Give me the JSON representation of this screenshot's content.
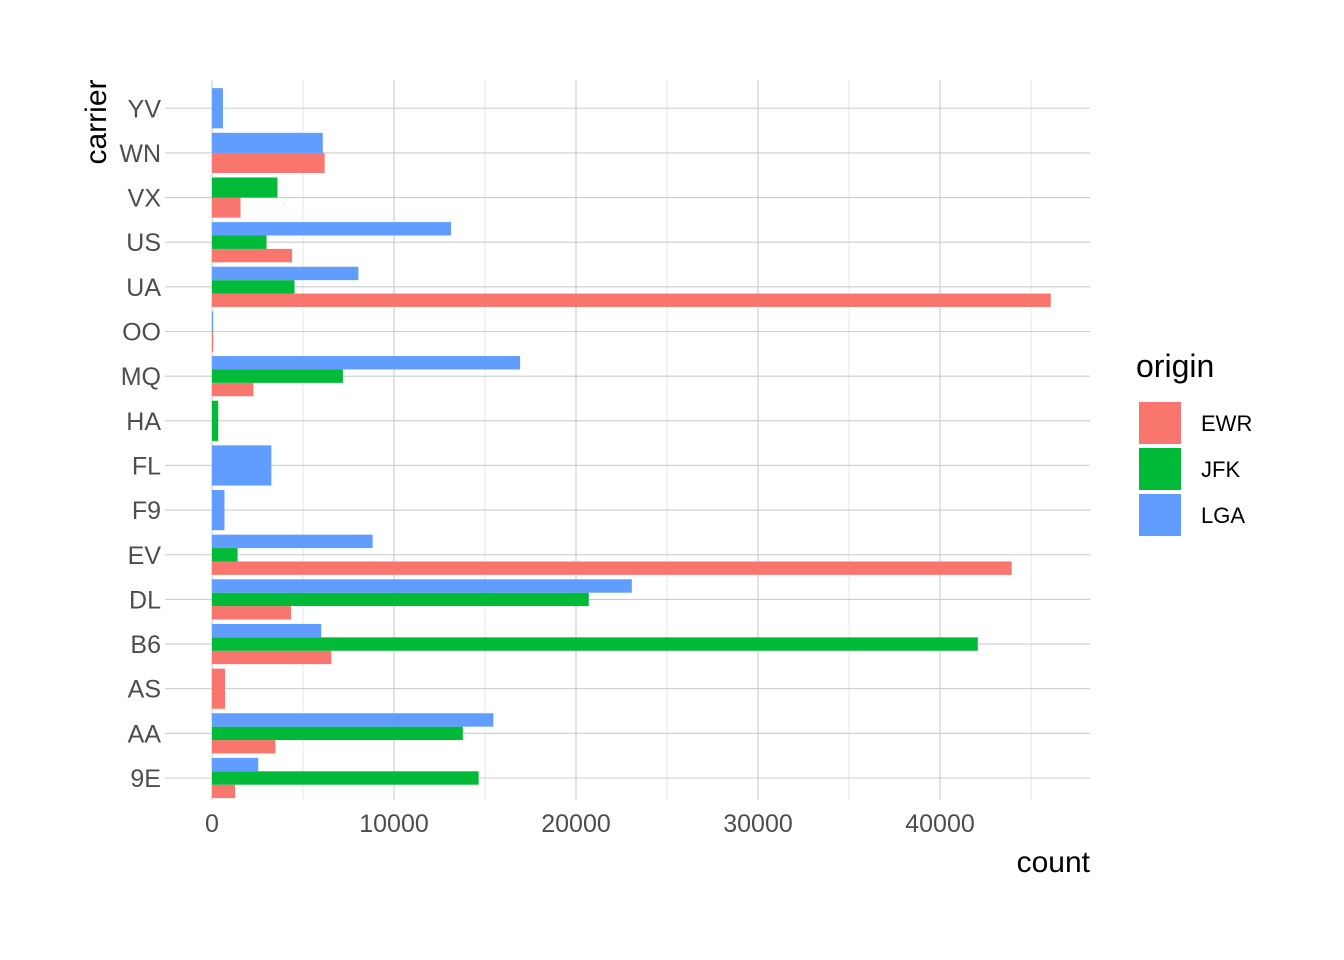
{
  "chart_data": {
    "type": "bar",
    "orientation": "horizontal",
    "position": "dodge",
    "xlabel": "count",
    "ylabel": "carrier",
    "xlim": [
      0,
      48000
    ],
    "xticks": [
      0,
      10000,
      20000,
      30000,
      40000
    ],
    "grid": true,
    "legend": {
      "title": "origin",
      "placement": "right"
    },
    "categories": [
      "9E",
      "AA",
      "AS",
      "B6",
      "DL",
      "EV",
      "F9",
      "FL",
      "HA",
      "MQ",
      "OO",
      "UA",
      "US",
      "VX",
      "WN",
      "YV"
    ],
    "series": [
      {
        "name": "EWR",
        "color": "#F8766D",
        "values": [
          1268,
          3487,
          714,
          6557,
          4342,
          43939,
          null,
          null,
          null,
          2276,
          6,
          46087,
          4405,
          1566,
          6188,
          null
        ]
      },
      {
        "name": "JFK",
        "color": "#00BA38",
        "values": [
          14651,
          13783,
          null,
          42076,
          20701,
          1408,
          null,
          null,
          342,
          7193,
          null,
          4534,
          2995,
          3596,
          null,
          null
        ]
      },
      {
        "name": "LGA",
        "color": "#619CFF",
        "values": [
          2541,
          15459,
          null,
          6002,
          23067,
          8826,
          685,
          3260,
          null,
          16928,
          26,
          8044,
          13136,
          null,
          6087,
          601
        ]
      }
    ]
  }
}
